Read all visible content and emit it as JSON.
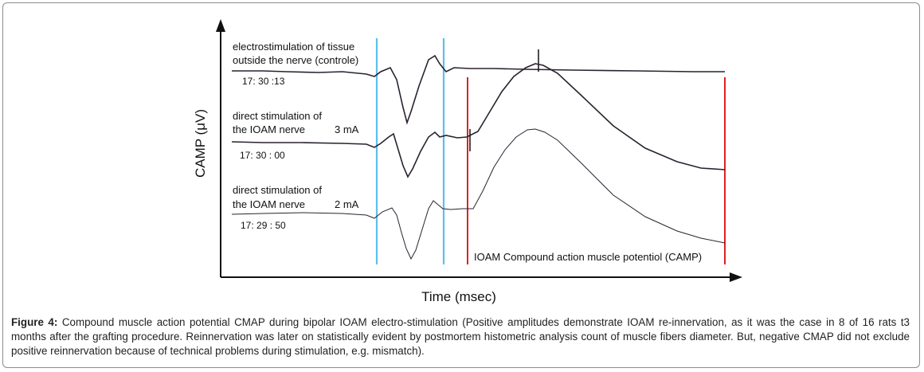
{
  "figure": {
    "y_axis_label": "CAMP (μV)",
    "x_axis_label": "Time (msec)",
    "traces": [
      {
        "label_line1": "electrostimulation of tissue",
        "label_line2": "outside the nerve (controle)",
        "time": "17: 30 :13",
        "current": ""
      },
      {
        "label_line1": "direct stimulation of",
        "label_line2": "the IOAM nerve",
        "time": "17: 30 : 00",
        "current": "3 mA"
      },
      {
        "label_line1": "direct stimulation of",
        "label_line2": "the IOAM nerve",
        "time": "17: 29 : 50",
        "current": "2 mA"
      }
    ],
    "camp_annotation": "IOAM Compound action muscle potentiol (CAMP)",
    "colors": {
      "marker_blue": "#5bc0ea",
      "marker_red": "#e02020",
      "trace": "#222222"
    }
  },
  "caption": {
    "label": "Figure 4:",
    "text": " Compound muscle action potential CMAP during bipolar IOAM electro-stimulation (Positive amplitudes demonstrate IOAM re-innervation, as it was the case in 8 of 16 rats t3 months after the grafting procedure. Reinnervation was later on statistically evident by postmortem histometric analysis count of muscle fibers diameter. But, negative CMAP did not exclude positive reinnervation because of technical problems during stimulation, e.g. mismatch)."
  }
}
